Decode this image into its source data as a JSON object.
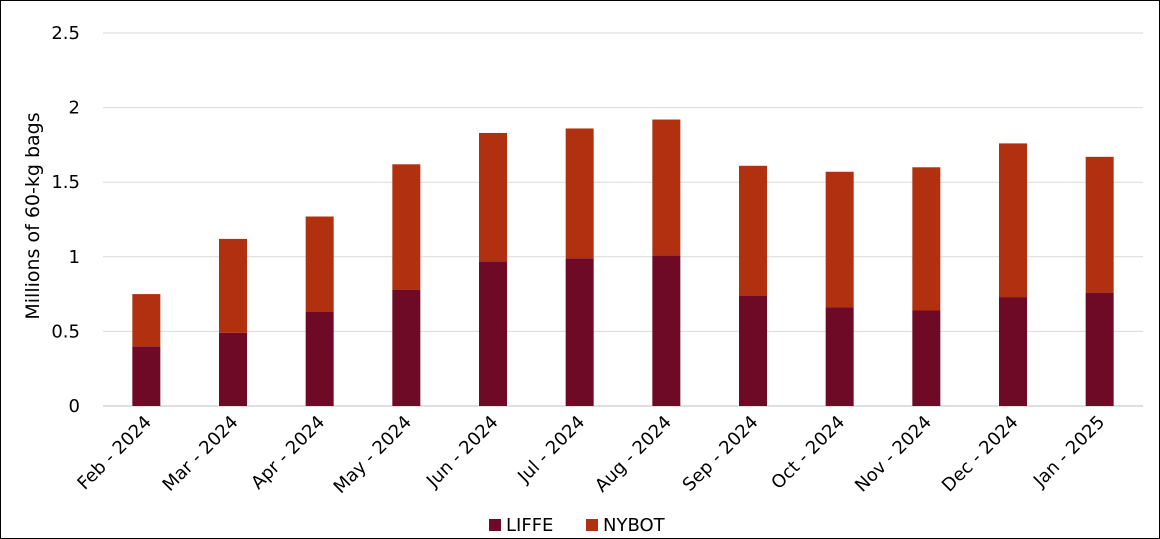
{
  "chart_data": {
    "type": "bar",
    "stacked": true,
    "ylabel": "Millions of 60-kg bags",
    "xlabel": "",
    "ylim": [
      0,
      2.5
    ],
    "ytick_step": 0.5,
    "yticks": [
      "0",
      "0.5",
      "1",
      "1.5",
      "2",
      "2.5"
    ],
    "grid": true,
    "legend_position": "bottom",
    "categories": [
      "Feb - 2024",
      "Mar - 2024",
      "Apr - 2024",
      "May - 2024",
      "Jun - 2024",
      "Jul - 2024",
      "Aug - 2024",
      "Sep - 2024",
      "Oct - 2024",
      "Nov - 2024",
      "Dec - 2024",
      "Jan - 2025"
    ],
    "series": [
      {
        "name": "LIFFE",
        "color": "#6e0a26",
        "values": [
          0.4,
          0.49,
          0.63,
          0.78,
          0.97,
          0.99,
          1.01,
          0.74,
          0.66,
          0.64,
          0.73,
          0.76
        ]
      },
      {
        "name": "NYBOT",
        "color": "#b0300f",
        "values": [
          0.35,
          0.63,
          0.64,
          0.84,
          0.86,
          0.87,
          0.91,
          0.87,
          0.91,
          0.96,
          1.03,
          0.91
        ]
      }
    ]
  }
}
